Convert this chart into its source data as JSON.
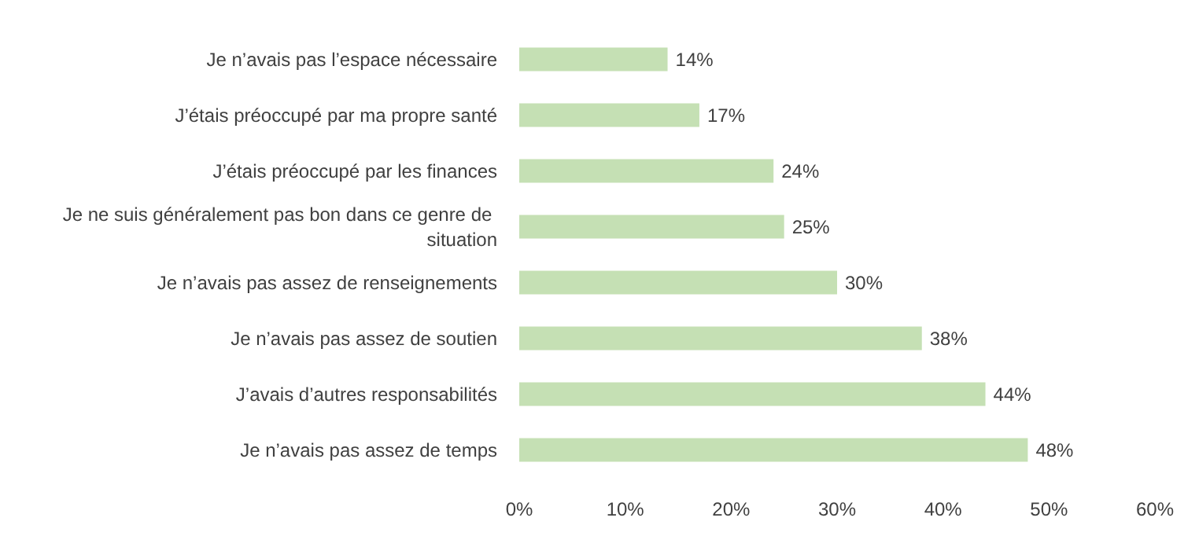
{
  "chart_data": {
    "type": "bar",
    "orientation": "horizontal",
    "categories": [
      "Je n’avais pas l’espace nécessaire",
      "J’étais préoccupé par ma propre santé",
      "J’étais préoccupé par les finances",
      "Je ne suis généralement pas bon dans ce genre de situation",
      "Je n’avais pas assez de renseignements",
      "Je n’avais pas assez de soutien",
      "J’avais d’autres responsabilités",
      "Je n’avais pas assez de temps"
    ],
    "values": [
      14,
      17,
      24,
      25,
      30,
      38,
      44,
      48
    ],
    "value_labels": [
      "14%",
      "17%",
      "24%",
      "25%",
      "30%",
      "38%",
      "44%",
      "48%"
    ],
    "color": "#c5e0b4",
    "xlim": [
      0,
      60
    ],
    "xticks": [
      {
        "value": 0,
        "label": "0%"
      },
      {
        "value": 10,
        "label": "10%"
      },
      {
        "value": 20,
        "label": "20%"
      },
      {
        "value": 30,
        "label": "30%"
      },
      {
        "value": 40,
        "label": "40%"
      },
      {
        "value": 50,
        "label": "50%"
      },
      {
        "value": 60,
        "label": "60%"
      }
    ],
    "grid": false
  }
}
